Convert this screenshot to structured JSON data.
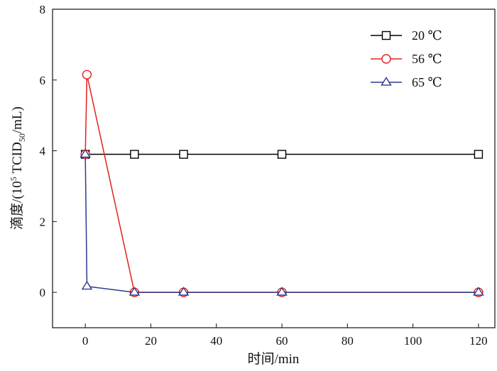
{
  "chart_data": {
    "type": "line",
    "title": "",
    "xlabel": "时间/min",
    "ylabel": {
      "prefix": "滴度/(10",
      "exp": "5",
      "mid": " TCID",
      "sub": "50",
      "suffix": "/mL)"
    },
    "xlim": [
      -10,
      125
    ],
    "ylim": [
      -1,
      8
    ],
    "xticks": [
      0,
      20,
      40,
      60,
      80,
      100,
      120
    ],
    "yticks": [
      0,
      2,
      4,
      6,
      8
    ],
    "legend_position": "top-right",
    "grid": false,
    "series": [
      {
        "name": "20 ℃",
        "color": "#000000",
        "marker": "square",
        "points": [
          [
            0,
            3.9
          ],
          [
            15,
            3.9
          ],
          [
            30,
            3.9
          ],
          [
            60,
            3.9
          ],
          [
            120,
            3.9
          ]
        ]
      },
      {
        "name": "56 ℃",
        "color": "#e0221b",
        "marker": "circle",
        "points": [
          [
            0,
            3.9
          ],
          [
            0.5,
            6.15
          ],
          [
            15,
            0
          ],
          [
            30,
            0
          ],
          [
            60,
            0
          ],
          [
            120,
            0
          ]
        ]
      },
      {
        "name": "65 ℃",
        "color": "#2b3a8f",
        "marker": "triangle",
        "points": [
          [
            0,
            3.9
          ],
          [
            0.5,
            0.17
          ],
          [
            15,
            0
          ],
          [
            30,
            0
          ],
          [
            60,
            0
          ],
          [
            120,
            0
          ]
        ]
      }
    ]
  }
}
